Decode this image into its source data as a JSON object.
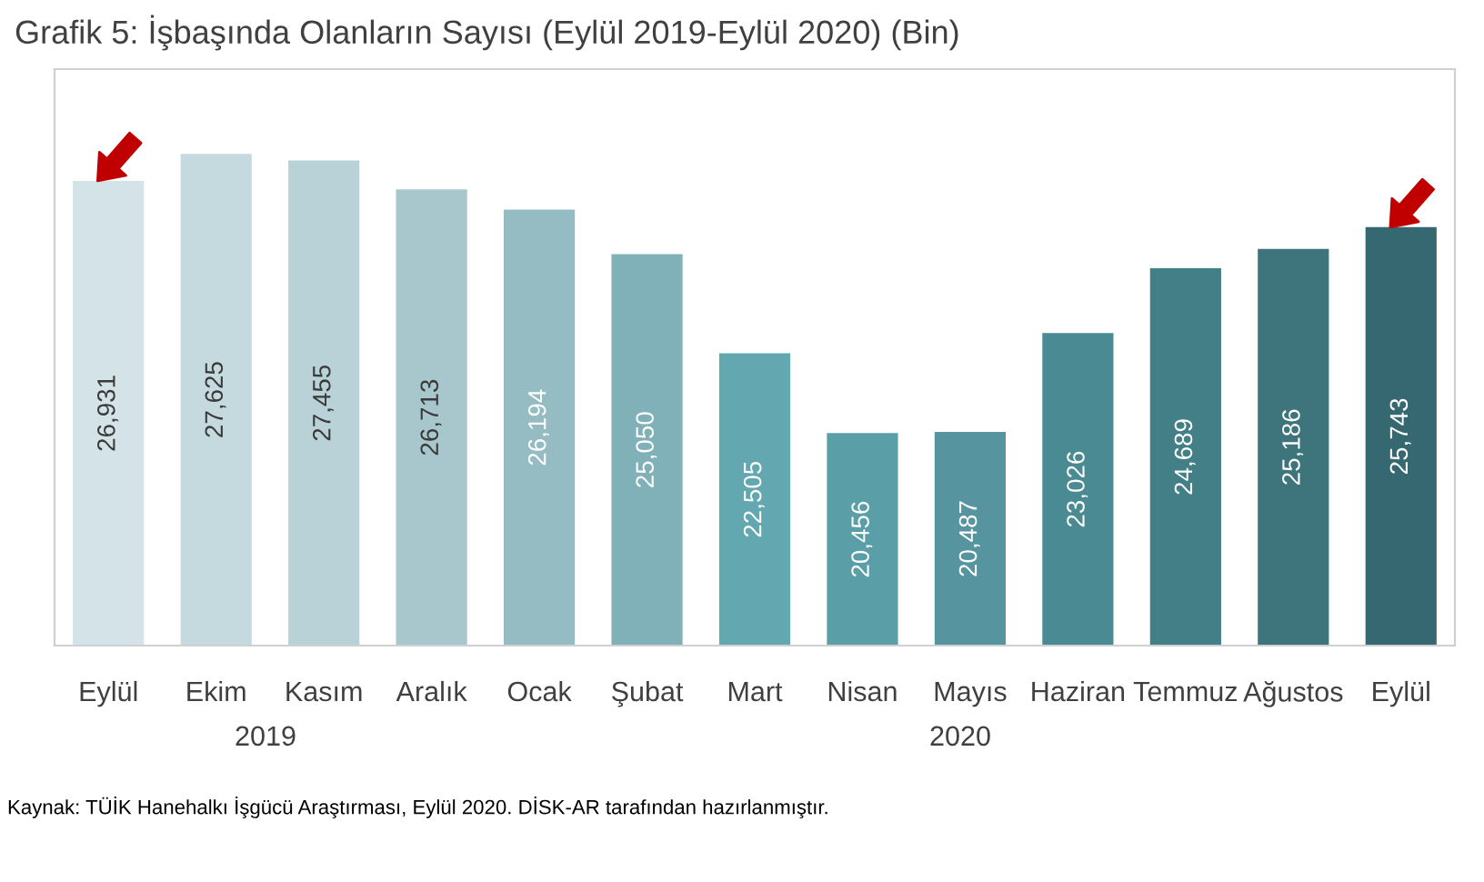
{
  "chart_data": {
    "type": "bar",
    "title": "Grafik 5: İşbaşında Olanların Sayısı (Eylül 2019-Eylül 2020) (Bin)",
    "categories": [
      "Eylül",
      "Ekim",
      "Kasım",
      "Aralık",
      "Ocak",
      "Şubat",
      "Mart",
      "Nisan",
      "Mayıs",
      "Haziran",
      "Temmuz",
      "Ağustos",
      "Eylül"
    ],
    "values": [
      26931,
      27625,
      27455,
      26713,
      26194,
      25050,
      22505,
      20456,
      20487,
      23026,
      24689,
      25186,
      25743
    ],
    "colors": [
      "#d4e3e7",
      "#c5dadf",
      "#b8d2d7",
      "#a8c7cd",
      "#95bcc3",
      "#80b0b8",
      "#63a7b1",
      "#5a9ea8",
      "#56959f",
      "#4a8a92",
      "#437f87",
      "#3e757c",
      "#356870"
    ],
    "value_labels": [
      "26,931",
      "27,625",
      "27,455",
      "26,713",
      "26,194",
      "25,050",
      "22,505",
      "20,456",
      "20,487",
      "23,026",
      "24,689",
      "25,186",
      "25,743"
    ],
    "ylim": [
      15000,
      29800
    ],
    "tick_labels": "x",
    "grid": false,
    "annotations": [
      "2019",
      "2020",
      "Kaynak: TÜİK Hanehalkı İşgücü Araştırması, Eylül 2020. DİSK-AR tarafından hazırlanmıştır."
    ]
  }
}
